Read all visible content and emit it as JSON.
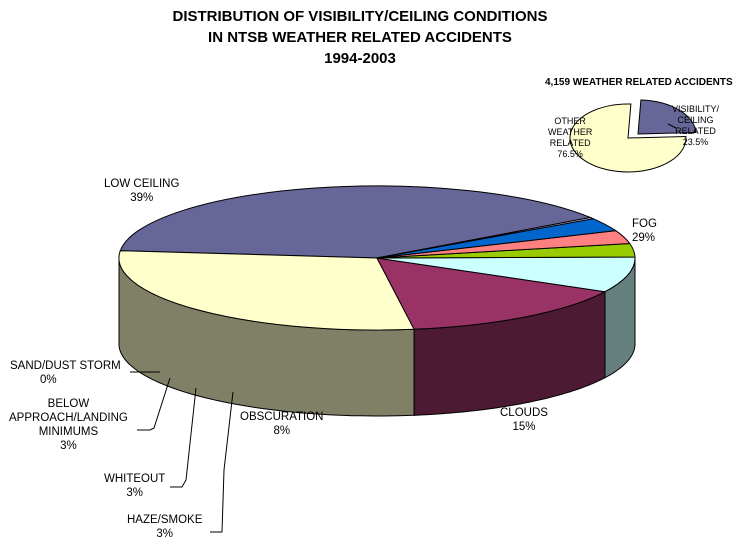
{
  "chart_data": [
    {
      "type": "pie",
      "title_lines": [
        "DISTRIBUTION OF VISIBILITY/CEILING CONDITIONS",
        "IN NTSB WEATHER RELATED ACCIDENTS",
        "1994-2003"
      ],
      "slices": [
        {
          "label_lines": [
            "LOW CEILING"
          ],
          "value_label": "39%",
          "value": 39,
          "color": "#666699",
          "side_color": "#333355"
        },
        {
          "label_lines": [
            "FOG"
          ],
          "value_label": "29%",
          "value": 29,
          "color": "#FFFFCC",
          "side_color": "#808066"
        },
        {
          "label_lines": [
            "CLOUDS"
          ],
          "value_label": "15%",
          "value": 15,
          "color": "#993366",
          "side_color": "#4D1A33"
        },
        {
          "label_lines": [
            "OBSCURATION"
          ],
          "value_label": "8%",
          "value": 8,
          "color": "#CCFFFF",
          "side_color": "#668080"
        },
        {
          "label_lines": [
            "HAZE/SMOKE"
          ],
          "value_label": "3%",
          "value": 3,
          "color": "#99CC00",
          "side_color": "#4D6600"
        },
        {
          "label_lines": [
            "WHITEOUT"
          ],
          "value_label": "3%",
          "value": 3,
          "color": "#FF8080",
          "side_color": "#804040"
        },
        {
          "label_lines": [
            "BELOW",
            "APPROACH/LANDING",
            "MINIMUMS"
          ],
          "value_label": "3%",
          "value": 3,
          "color": "#0066CC",
          "side_color": "#003366"
        },
        {
          "label_lines": [
            "SAND/DUST STORM"
          ],
          "value_label": "0%",
          "value": 0.3,
          "color": "#CCCCFF",
          "side_color": "#666680"
        }
      ]
    },
    {
      "type": "pie",
      "title": "4,159 WEATHER RELATED ACCIDENTS",
      "slices": [
        {
          "label_lines": [
            "VISIBILITY/",
            "CEILING",
            "RELATED"
          ],
          "value_label": "23.5%",
          "value": 23.5,
          "color": "#666699"
        },
        {
          "label_lines": [
            "OTHER",
            "WEATHER",
            "RELATED"
          ],
          "value_label": "76.5%",
          "value": 76.5,
          "color": "#FFFFCC"
        }
      ]
    }
  ]
}
